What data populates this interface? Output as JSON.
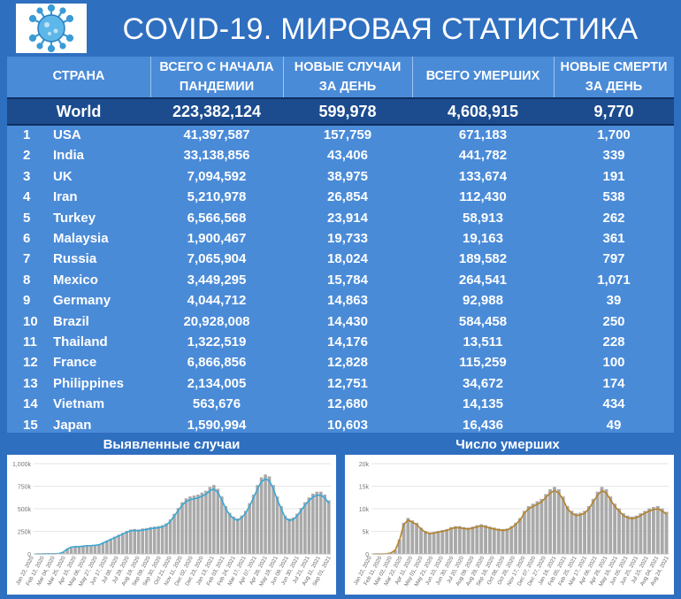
{
  "title": "COVID-19. МИРОВАЯ СТАТИСТИКА",
  "table": {
    "headers": {
      "country": "СТРАНА",
      "total_cases": [
        "ВСЕГО С НАЧАЛА",
        "ПАНДЕМИИ"
      ],
      "new_cases": [
        "НОВЫЕ СЛУЧАИ",
        "ЗА ДЕНЬ"
      ],
      "total_deaths": "ВСЕГО УМЕРШИХ",
      "new_deaths": [
        "НОВЫЕ СМЕРТИ",
        "ЗА ДЕНЬ"
      ]
    },
    "world": {
      "label": "World",
      "total_cases": "223,382,124",
      "new_cases": "599,978",
      "total_deaths": "4,608,915",
      "new_deaths": "9,770"
    },
    "rows": [
      {
        "rank": "1",
        "country": "USA",
        "total_cases": "41,397,587",
        "new_cases": "157,759",
        "total_deaths": "671,183",
        "new_deaths": "1,700"
      },
      {
        "rank": "2",
        "country": "India",
        "total_cases": "33,138,856",
        "new_cases": "43,406",
        "total_deaths": "441,782",
        "new_deaths": "339"
      },
      {
        "rank": "3",
        "country": "UK",
        "total_cases": "7,094,592",
        "new_cases": "38,975",
        "total_deaths": "133,674",
        "new_deaths": "191"
      },
      {
        "rank": "4",
        "country": "Iran",
        "total_cases": "5,210,978",
        "new_cases": "26,854",
        "total_deaths": "112,430",
        "new_deaths": "538"
      },
      {
        "rank": "5",
        "country": "Turkey",
        "total_cases": "6,566,568",
        "new_cases": "23,914",
        "total_deaths": "58,913",
        "new_deaths": "262"
      },
      {
        "rank": "6",
        "country": "Malaysia",
        "total_cases": "1,900,467",
        "new_cases": "19,733",
        "total_deaths": "19,163",
        "new_deaths": "361"
      },
      {
        "rank": "7",
        "country": "Russia",
        "total_cases": "7,065,904",
        "new_cases": "18,024",
        "total_deaths": "189,582",
        "new_deaths": "797"
      },
      {
        "rank": "8",
        "country": "Mexico",
        "total_cases": "3,449,295",
        "new_cases": "15,784",
        "total_deaths": "264,541",
        "new_deaths": "1,071"
      },
      {
        "rank": "9",
        "country": "Germany",
        "total_cases": "4,044,712",
        "new_cases": "14,863",
        "total_deaths": "92,988",
        "new_deaths": "39"
      },
      {
        "rank": "10",
        "country": "Brazil",
        "total_cases": "20,928,008",
        "new_cases": "14,430",
        "total_deaths": "584,458",
        "new_deaths": "250"
      },
      {
        "rank": "11",
        "country": "Thailand",
        "total_cases": "1,322,519",
        "new_cases": "14,176",
        "total_deaths": "13,511",
        "new_deaths": "228"
      },
      {
        "rank": "12",
        "country": "France",
        "total_cases": "6,866,856",
        "new_cases": "12,828",
        "total_deaths": "115,259",
        "new_deaths": "100"
      },
      {
        "rank": "13",
        "country": "Philippines",
        "total_cases": "2,134,005",
        "new_cases": "12,751",
        "total_deaths": "34,672",
        "new_deaths": "174"
      },
      {
        "rank": "14",
        "country": "Vietnam",
        "total_cases": "563,676",
        "new_cases": "12,680",
        "total_deaths": "14,135",
        "new_deaths": "434"
      },
      {
        "rank": "15",
        "country": "Japan",
        "total_cases": "1,590,994",
        "new_cases": "10,603",
        "total_deaths": "16,436",
        "new_deaths": "49"
      }
    ]
  },
  "colors": {
    "background": "#2F6FC0",
    "table_bg": "#4A8BD8",
    "world_row": "#1C4C8E",
    "bars": "#A9A9A9",
    "cases_line": "#3BA7D4",
    "deaths_line": "#B5822A"
  },
  "chart_data": [
    {
      "type": "bar",
      "title": "Выявленные случаи",
      "overlay_line": "7-day average",
      "ylim": [
        0,
        1000000
      ],
      "yticks": [
        "0",
        "250k",
        "500k",
        "750k",
        "1,000k"
      ],
      "xticks": [
        "Jan 22, 2020",
        "Feb 12, 2020",
        "Mar 04, 2020",
        "Mar 25, 2020",
        "Apr 15, 2020",
        "May 06, 2020",
        "May 27, 2020",
        "Jun 17, 2020",
        "Jul 08, 2020",
        "Jul 29, 2020",
        "Aug 19, 2020",
        "Sep 09, 2020",
        "Sep 30, 2020",
        "Oct 21, 2020",
        "Nov 11, 2020",
        "Dec 02, 2020",
        "Dec 23, 2020",
        "Jan 13, 2021",
        "Feb 03, 2021",
        "Feb 24, 2021",
        "Mar 17, 2021",
        "Apr 07, 2021",
        "Apr 28, 2021",
        "May 19, 2021",
        "Jun 09, 2021",
        "Jun 30, 2021",
        "Jul 21, 2021",
        "Aug 11, 2021",
        "Sep 01, 2021"
      ],
      "series_weekly": [
        0,
        0,
        1000,
        2000,
        2000,
        2000,
        5000,
        20000,
        55000,
        75000,
        80000,
        80000,
        85000,
        90000,
        92000,
        95000,
        100000,
        120000,
        140000,
        160000,
        180000,
        200000,
        220000,
        240000,
        255000,
        260000,
        255000,
        265000,
        270000,
        280000,
        285000,
        290000,
        300000,
        320000,
        360000,
        420000,
        480000,
        540000,
        580000,
        600000,
        610000,
        620000,
        640000,
        660000,
        700000,
        720000,
        680000,
        600000,
        500000,
        430000,
        390000,
        370000,
        400000,
        450000,
        530000,
        620000,
        720000,
        800000,
        830000,
        810000,
        720000,
        600000,
        500000,
        400000,
        370000,
        380000,
        420000,
        480000,
        540000,
        590000,
        630000,
        650000,
        650000,
        620000,
        560000
      ]
    },
    {
      "type": "bar",
      "title": "Число умерших",
      "overlay_line": "7-day average",
      "ylim": [
        0,
        20000
      ],
      "yticks": [
        "0",
        "5k",
        "10k",
        "15k",
        "20k"
      ],
      "xticks": [
        "Jan 22, 2020",
        "Feb 11, 2020",
        "Mar 02, 2020",
        "Mar 22, 2020",
        "Apr 11, 2020",
        "May 01, 2020",
        "May 21, 2020",
        "Jun 10, 2020",
        "Jun 30, 2020",
        "Jul 20, 2020",
        "Aug 09, 2020",
        "Aug 29, 2020",
        "Sep 18, 2020",
        "Oct 08, 2020",
        "Oct 28, 2020",
        "Nov 17, 2020",
        "Dec 07, 2020",
        "Dec 27, 2020",
        "Jan 16, 2021",
        "Feb 05, 2021",
        "Feb 25, 2021",
        "Mar 17, 2021",
        "Apr 06, 2021",
        "Apr 26, 2021",
        "May 16, 2021",
        "Jun 05, 2021",
        "Jun 25, 2021",
        "Jul 15, 2021",
        "Aug 04, 2021",
        "Aug 24, 2021"
      ],
      "series_weekly": [
        0,
        0,
        0,
        50,
        200,
        800,
        3000,
        6500,
        7500,
        7000,
        6500,
        5500,
        4800,
        4500,
        4600,
        4800,
        5000,
        5200,
        5600,
        5800,
        5800,
        5600,
        5500,
        5700,
        6000,
        6200,
        6000,
        5700,
        5500,
        5300,
        5200,
        5300,
        5800,
        6500,
        7500,
        9000,
        10000,
        10500,
        11000,
        11500,
        12500,
        13500,
        14000,
        13500,
        12000,
        10000,
        9000,
        8500,
        8600,
        9000,
        10000,
        11500,
        13000,
        14000,
        13500,
        12000,
        10500,
        9500,
        8500,
        8000,
        7800,
        8000,
        8500,
        9000,
        9500,
        9800,
        10000,
        9500,
        8800
      ]
    }
  ]
}
